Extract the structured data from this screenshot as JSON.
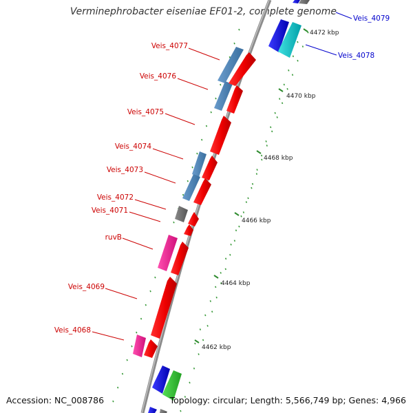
{
  "title": "Verminephrobacter eiseniae EF01-2, complete genome",
  "footer": {
    "accession": "Accession: NC_008786",
    "topology": "Topology: circular; Length: 5,566,749 bp; Genes: 4,966"
  },
  "colors": {
    "backbone": "#9a9a9a",
    "tick": "#2e8b2e",
    "label_red": "#cc0000",
    "label_blue": "#0000cc",
    "gene_red": "#ff0000",
    "gene_blue": "#4682b4",
    "gene_pink": "#ff1493",
    "gene_gray": "#707070",
    "gene_royal": "#0000ff",
    "gene_cyan": "#00cccc",
    "gene_green": "#33cc33"
  },
  "axis_labels": [
    "4472 kbp",
    "4470 kbp",
    "4468 kbp",
    "4466 kbp",
    "4464 kbp",
    "4462 kbp"
  ],
  "gene_labels": [
    {
      "text": "Veis_4077",
      "color": "red"
    },
    {
      "text": "Veis_4076",
      "color": "red"
    },
    {
      "text": "Veis_4075",
      "color": "red"
    },
    {
      "text": "Veis_4074",
      "color": "red"
    },
    {
      "text": "Veis_4073",
      "color": "red"
    },
    {
      "text": "Veis_4072",
      "color": "red"
    },
    {
      "text": "Veis_4071",
      "color": "red"
    },
    {
      "text": "ruvB",
      "color": "red"
    },
    {
      "text": "Veis_4069",
      "color": "red"
    },
    {
      "text": "Veis_4068",
      "color": "red"
    },
    {
      "text": "Veis_4079",
      "color": "blue"
    },
    {
      "text": "Veis_4078",
      "color": "blue"
    }
  ]
}
